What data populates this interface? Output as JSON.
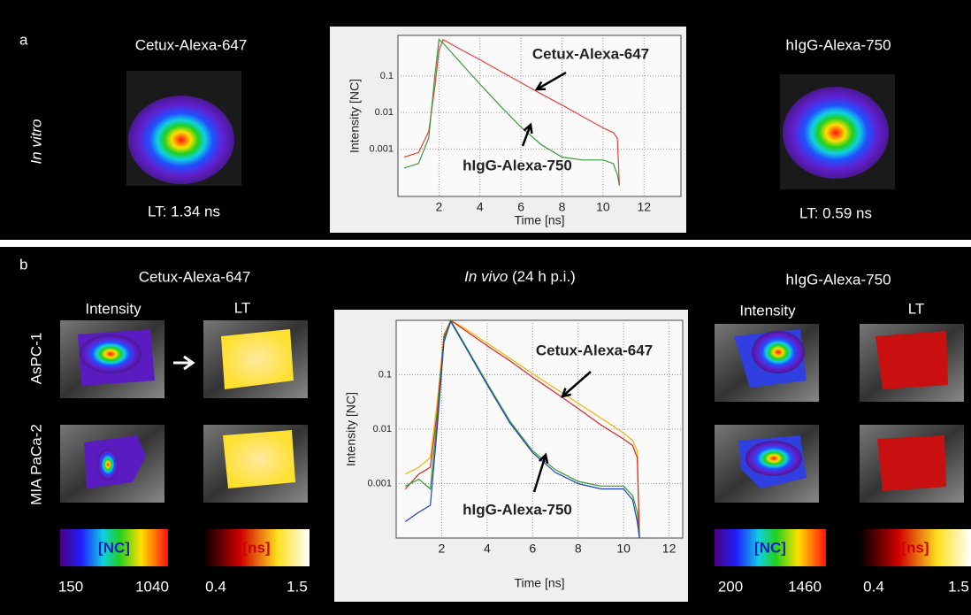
{
  "panel_a": {
    "label": "a",
    "row_label": "In vitro",
    "left": {
      "title": "Cetux-Alexa-647",
      "lifetime": "LT: 1.34 ns"
    },
    "right": {
      "title": "hIgG-Alexa-750",
      "lifetime": "LT:  0.59 ns"
    }
  },
  "panel_b": {
    "label": "b",
    "center_title": "In vivo",
    "center_subtitle": " (24 h p.i.)",
    "rows": [
      "AsPC-1",
      "MIA PaCa-2"
    ],
    "left": {
      "title": "Cetux-Alexa-647",
      "intensity": "Intensity",
      "lt": "LT",
      "colorbar_intensity": {
        "label": "[NC]",
        "min": 150,
        "max": 1040
      },
      "colorbar_lt": {
        "label": "[ns]",
        "min": 0.4,
        "max": 1.5
      }
    },
    "right": {
      "title": "hIgG-Alexa-750",
      "intensity": "Intensity",
      "lt": "LT",
      "colorbar_intensity": {
        "label": "[NC]",
        "min": 200,
        "max": 1460
      },
      "colorbar_lt": {
        "label": "[ns]",
        "min": 0.4,
        "max": 1.5
      }
    }
  },
  "chart_data": [
    {
      "type": "line",
      "xlabel": "Time [ns]",
      "ylabel": "Intensity [NC]",
      "log_y": true,
      "grid": true,
      "xlim": [
        0,
        13.8
      ],
      "ylim": [
        5e-05,
        1.3
      ],
      "xticks": [
        2,
        4,
        6,
        8,
        10,
        12
      ],
      "yticks": [
        0.001,
        0.01,
        0.1
      ],
      "annotations": [
        "Cetux-Alexa-647",
        "hIgG-Alexa-750"
      ],
      "x": [
        0.3,
        1,
        1.5,
        1.8,
        2,
        2.2,
        3,
        4,
        5,
        6,
        7,
        8,
        9,
        10,
        10.5,
        10.7,
        10.8
      ],
      "series": [
        {
          "color": "#e8413a",
          "values": [
            0.0006,
            0.0008,
            0.003,
            0.05,
            0.5,
            1,
            0.56,
            0.28,
            0.135,
            0.066,
            0.032,
            0.016,
            0.0078,
            0.0038,
            0.0028,
            0.002,
            0.0001
          ]
        },
        {
          "color": "#3a9a3a",
          "values": [
            0.0003,
            0.0004,
            0.002,
            0.1,
            1,
            0.8,
            0.25,
            0.06,
            0.015,
            0.004,
            0.0013,
            0.0006,
            0.0005,
            0.0005,
            0.0004,
            0.0002,
            0.0001
          ]
        }
      ]
    },
    {
      "type": "line",
      "xlabel": "Time [ns]",
      "ylabel": "Intensity [NC]",
      "log_y": true,
      "grid": true,
      "xlim": [
        0,
        12.6
      ],
      "ylim": [
        0.0001,
        1
      ],
      "xticks": [
        2,
        4,
        6,
        8,
        10,
        12
      ],
      "yticks": [
        0.001,
        0.01,
        0.1
      ],
      "annotations": [
        "Cetux-Alexa-647",
        "hIgG-Alexa-750"
      ],
      "x": [
        0.4,
        1,
        1.5,
        1.8,
        2.1,
        2.4,
        3,
        4,
        5,
        6,
        7,
        8,
        9,
        10,
        10.4,
        10.6,
        10.7
      ],
      "series": [
        {
          "color": "#f0b400",
          "values": [
            0.0015,
            0.002,
            0.003,
            0.03,
            0.55,
            1,
            0.72,
            0.38,
            0.2,
            0.105,
            0.056,
            0.03,
            0.016,
            0.0085,
            0.0062,
            0.004,
            0.0001
          ]
        },
        {
          "color": "#e02020",
          "values": [
            0.0008,
            0.0015,
            0.002,
            0.02,
            0.5,
            1,
            0.67,
            0.34,
            0.18,
            0.09,
            0.047,
            0.024,
            0.012,
            0.0066,
            0.005,
            0.003,
            0.0001
          ]
        },
        {
          "color": "#2e9a2e",
          "values": [
            0.0009,
            0.0012,
            0.0008,
            0.015,
            0.45,
            1,
            0.37,
            0.07,
            0.014,
            0.004,
            0.0018,
            0.0011,
            0.0009,
            0.0009,
            0.0006,
            0.0003,
            0.0001
          ]
        },
        {
          "color": "#1f3fbf",
          "values": [
            0.0002,
            0.0003,
            0.0004,
            0.01,
            0.4,
            0.95,
            0.35,
            0.065,
            0.013,
            0.0037,
            0.0016,
            0.001,
            0.0008,
            0.0008,
            0.0005,
            0.0002,
            0.0001
          ]
        }
      ]
    }
  ]
}
